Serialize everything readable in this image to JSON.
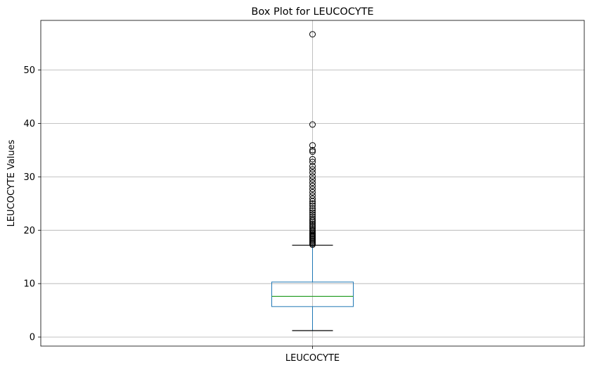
{
  "chart_data": {
    "type": "box",
    "title": "Box Plot for LEUCOCYTE",
    "xlabel": "",
    "ylabel": "LEUCOCYTE Values",
    "categories": [
      "LEUCOCYTE"
    ],
    "ylim": [
      -1.7,
      59.3
    ],
    "yticks": [
      0,
      10,
      20,
      30,
      40,
      50
    ],
    "grid": true,
    "box": {
      "whisker_low": 1.2,
      "q1": 5.7,
      "median": 7.6,
      "q3": 10.3,
      "whisker_high": 17.2
    },
    "outliers": [
      17.3,
      17.5,
      17.7,
      17.9,
      18.1,
      18.3,
      18.5,
      18.7,
      18.9,
      19.1,
      19.3,
      19.5,
      19.8,
      20.0,
      20.3,
      20.6,
      20.9,
      21.2,
      21.5,
      21.8,
      22.1,
      22.5,
      22.9,
      23.3,
      23.7,
      24.1,
      24.6,
      25.0,
      25.4,
      25.9,
      26.5,
      27.1,
      27.7,
      28.3,
      28.9,
      29.5,
      30.1,
      30.8,
      31.4,
      32.0,
      32.8,
      33.3,
      34.7,
      35.0,
      35.9,
      39.8,
      56.7
    ],
    "colors": {
      "box": "#1f77b4",
      "median": "#2ca02c",
      "whisker": "#000000",
      "grid": "#b0b0b0"
    }
  }
}
